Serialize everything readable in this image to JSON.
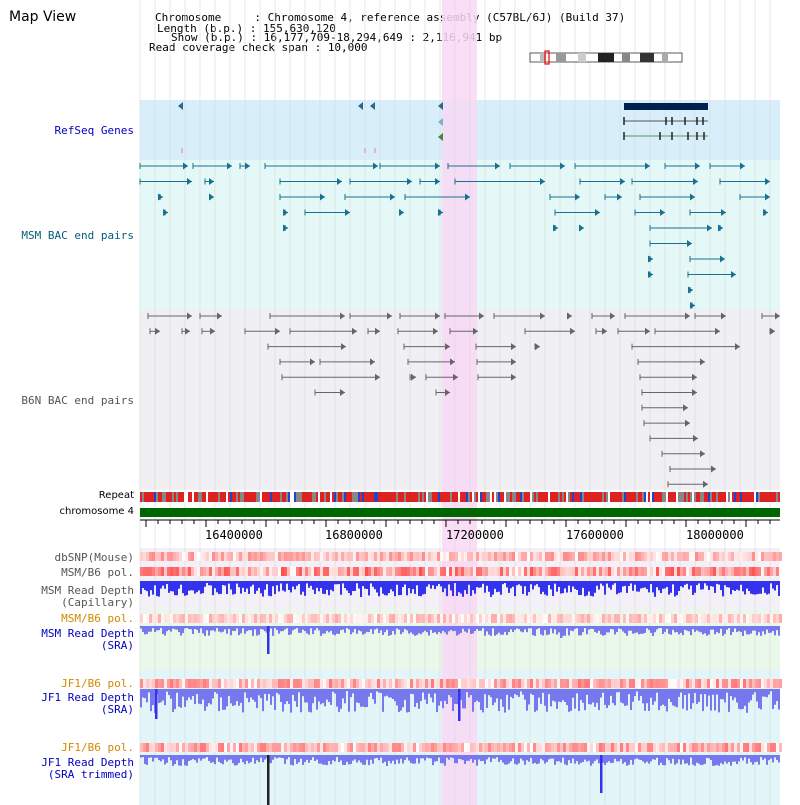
{
  "app": {
    "title": "Map View"
  },
  "info": {
    "chromosome_label": "Chromosome     : ",
    "chromosome_value": "Chromosome 4, reference assembly (C57BL/6J) (Build 37)",
    "length_label": "Length (b.p.) : ",
    "length_value": "155,630,120",
    "show_label": "Show (b.p.) : ",
    "show_value": "16,177,709-18,294,649 : 2,116,941 bp",
    "coverage_label": "Read coverage check span : ",
    "coverage_value": "10,000"
  },
  "tracks": {
    "refseq": "RefSeq Genes",
    "msm_bac": "MSM BAC end pairs",
    "b6n_bac": "B6N BAC end pairs",
    "repeat": "Repeat",
    "chromosome": "chromosome 4",
    "dbsnp": "dbSNP(Mouse)",
    "msm_b6_pol": "MSM/B6 pol.",
    "msm_read_depth_cap_1": "MSM Read Depth",
    "msm_read_depth_cap_2": "(Capillary)",
    "msm_b6_pol_sra": "MSM/B6 pol.",
    "msm_read_depth_sra_1": "MSM Read Depth",
    "msm_read_depth_sra_2": "(SRA)",
    "jf1_b6_pol": "JF1/B6 pol.",
    "jf1_read_depth_1": "JF1 Read Depth",
    "jf1_read_depth_2": "(SRA)",
    "jf1_b6_pol_trim": "JF1/B6 pol.",
    "jf1_read_depth_trim_1": "JF1 Read Depth",
    "jf1_read_depth_trim_2": "(SRA trimmed)"
  },
  "axis": {
    "ticks": [
      "16400000",
      "16800000",
      "17200000",
      "17600000",
      "18000000"
    ]
  },
  "colors": {
    "highlight": "#f8d8f4",
    "refseq_bg": "#d8eefa",
    "msm_bg": "#e4f8f8",
    "b6n_bg": "#f0f0f4",
    "chromosome": "#006600",
    "gene_dark": "#002050",
    "teal": "#1a7090",
    "gray_bac": "#666666",
    "depth_blue": "#3333ee",
    "depth_light": "#7777ee"
  }
}
